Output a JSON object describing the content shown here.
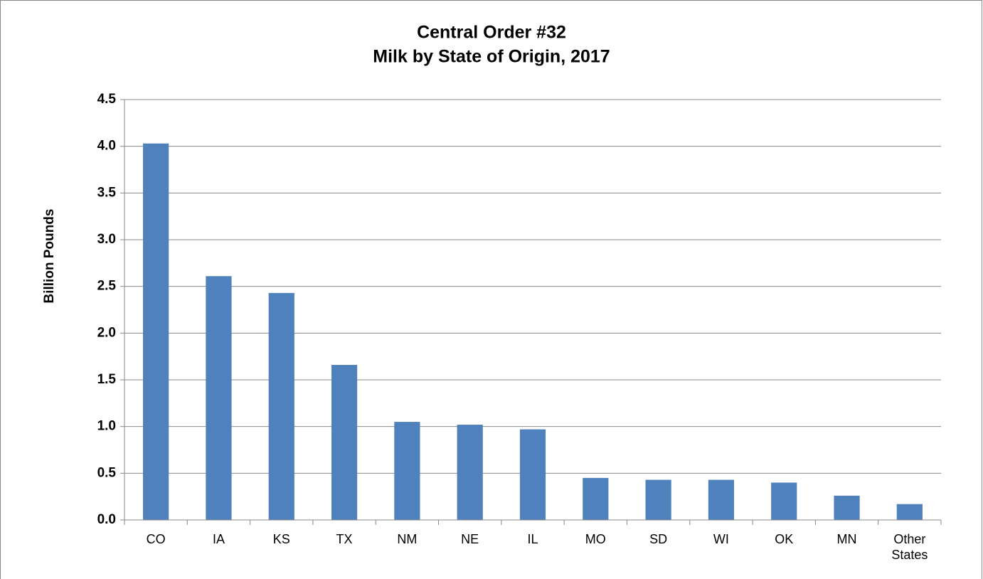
{
  "chart_data": {
    "type": "bar",
    "title": "Central Order #32",
    "subtitle": "Milk by State of Origin, 2017",
    "y_label": "Billion Pounds",
    "categories": [
      "CO",
      "IA",
      "KS",
      "TX",
      "NM",
      "NE",
      "IL",
      "MO",
      "SD",
      "WI",
      "OK",
      "MN",
      "Other States"
    ],
    "values": [
      4.03,
      2.61,
      2.43,
      1.66,
      1.05,
      1.02,
      0.97,
      0.45,
      0.43,
      0.43,
      0.4,
      0.26,
      0.17
    ],
    "color": "#4f81bd",
    "ylim": [
      0,
      4.5
    ],
    "yticks": [
      {
        "value": 0,
        "label": "0.0"
      },
      0.5,
      {
        "value": 1,
        "label": "1.0"
      },
      1.5,
      {
        "value": 2,
        "label": "2.0"
      },
      2.5,
      {
        "value": 3,
        "label": "3.0"
      },
      3.5,
      {
        "value": 4,
        "label": "4.0"
      },
      4.5
    ],
    "grid": true
  }
}
